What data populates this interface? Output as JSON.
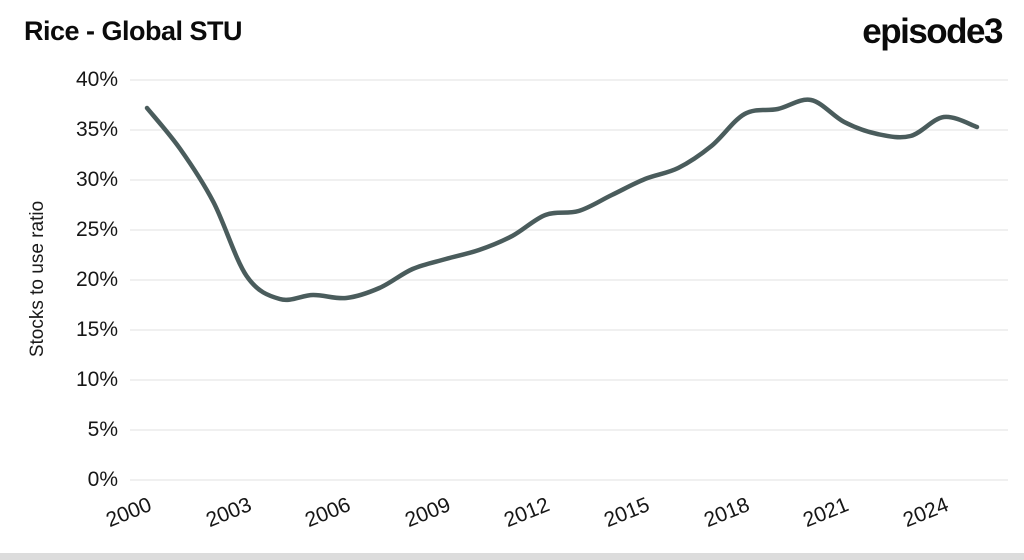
{
  "header": {
    "title": "Rice - Global STU",
    "logo": "episode3"
  },
  "chart_data": {
    "type": "line",
    "title": "Rice - Global STU",
    "xlabel": "",
    "ylabel": "Stocks to use ratio",
    "series_name": "Rice stocks to use ratio",
    "x": [
      2000,
      2001,
      2002,
      2003,
      2004,
      2005,
      2006,
      2007,
      2008,
      2009,
      2010,
      2011,
      2012,
      2013,
      2014,
      2015,
      2016,
      2017,
      2018,
      2019,
      2020,
      2021,
      2022,
      2023,
      2024,
      2025
    ],
    "values": [
      37.2,
      33.1,
      27.8,
      20.4,
      18.1,
      18.5,
      18.2,
      19.2,
      21.1,
      22.1,
      23.0,
      24.4,
      26.5,
      26.9,
      28.5,
      30.1,
      31.2,
      33.4,
      36.6,
      37.1,
      38.0,
      35.8,
      34.6,
      34.4,
      36.3,
      35.3
    ],
    "unit": "%",
    "ylim": [
      0,
      40
    ],
    "y_tick_step": 5,
    "y_tick_labels": [
      "0%",
      "5%",
      "10%",
      "15%",
      "20%",
      "25%",
      "30%",
      "35%",
      "40%"
    ],
    "x_tick_years": [
      2000,
      2003,
      2006,
      2009,
      2012,
      2015,
      2018,
      2021,
      2024
    ],
    "grid": "horizontal",
    "legend": "none",
    "line_color": "#4a5c5c",
    "gridline_color": "#e8e8e8"
  }
}
